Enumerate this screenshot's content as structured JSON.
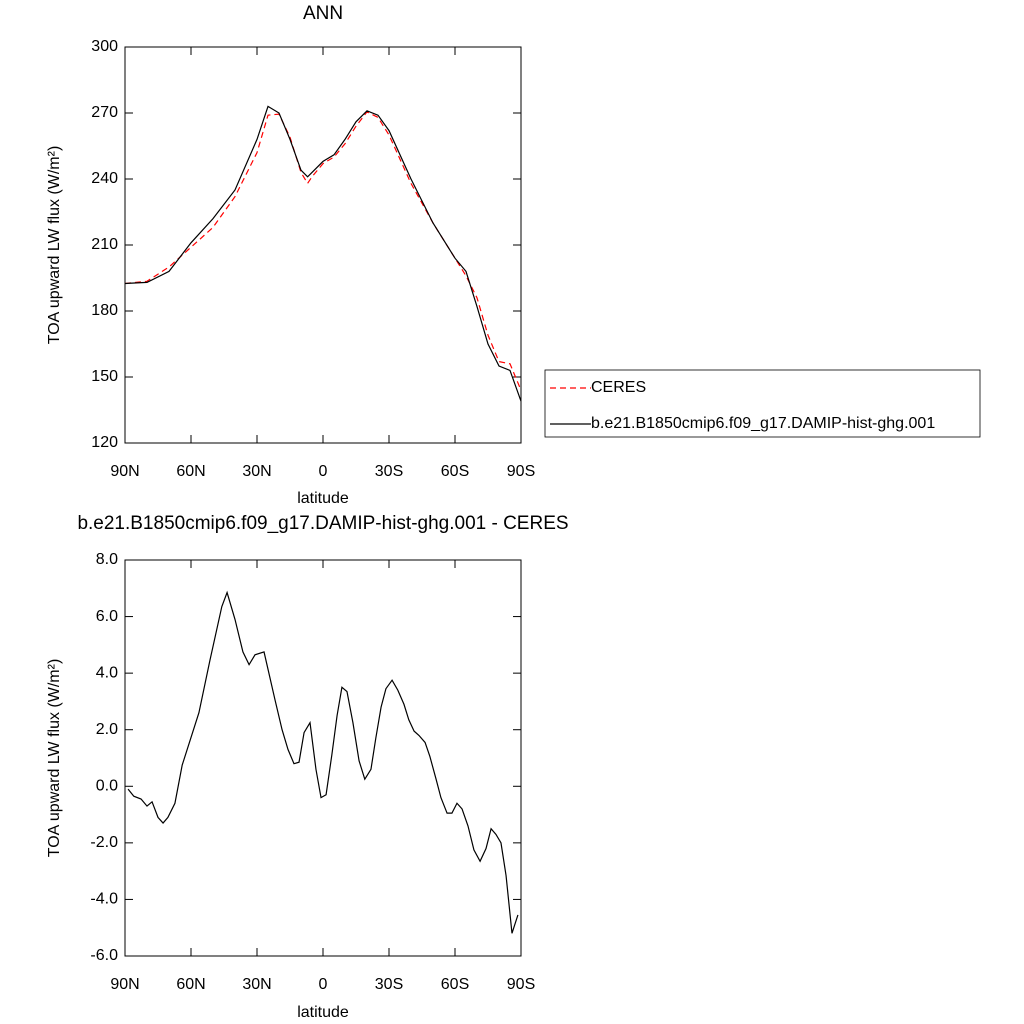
{
  "chart_data": [
    {
      "type": "line",
      "title": "ANN",
      "xlabel": "latitude",
      "ylabel": "TOA upward LW flux (W/m²)",
      "x": [
        90,
        80,
        70,
        60,
        50,
        40,
        30,
        25,
        20,
        15,
        10,
        7,
        5,
        0,
        -5,
        -10,
        -15,
        -20,
        -25,
        -30,
        -40,
        -50,
        -60,
        -65,
        -70,
        -75,
        -80,
        -85,
        -90
      ],
      "series": [
        {
          "name": "CERES",
          "color": "#ff0000",
          "dash": "dashed",
          "values": [
            192.5,
            193.5,
            200,
            209,
            218,
            232,
            252,
            269,
            269.5,
            259,
            243,
            238,
            241,
            247,
            250,
            256,
            264,
            270.5,
            268,
            260,
            238,
            220,
            204,
            196,
            186,
            169,
            157,
            156,
            144
          ]
        },
        {
          "name": "b.e21.B1850cmip6.f09_g17.DAMIP-hist-ghg.001",
          "color": "#000000",
          "dash": "solid",
          "values": [
            192.5,
            193,
            198,
            211,
            222,
            235,
            258,
            273,
            270,
            258,
            244,
            241,
            243,
            248,
            251,
            258,
            266,
            271,
            269,
            262,
            240,
            220,
            204,
            198,
            182,
            165,
            155,
            153,
            139
          ]
        }
      ],
      "xlim": [
        90,
        -90
      ],
      "xticks": [
        {
          "value": 90,
          "label": "90N"
        },
        {
          "value": 60,
          "label": "60N"
        },
        {
          "value": 30,
          "label": "30N"
        },
        0,
        {
          "value": -30,
          "label": "30S"
        },
        {
          "value": -60,
          "label": "60S"
        },
        {
          "value": -90,
          "label": "90S"
        }
      ],
      "ylim": [
        120,
        300
      ],
      "yticks": [
        120,
        150,
        180,
        210,
        240,
        270,
        300
      ],
      "legend": "right"
    },
    {
      "type": "line",
      "title": "b.e21.B1850cmip6.f09_g17.DAMIP-hist-ghg.001 - CERES",
      "xlabel": "latitude",
      "ylabel": "TOA upward LW flux (W/m²)",
      "x": [
        88.6,
        86,
        82.7,
        80,
        77.7,
        75,
        72.7,
        70.5,
        67.3,
        64,
        56.4,
        51.4,
        46,
        43.6,
        40,
        36.4,
        33.6,
        30.9,
        26.8,
        21.8,
        18.6,
        15.9,
        13.2,
        10.9,
        8.6,
        5.9,
        3.2,
        0.9,
        -1.4,
        -4,
        -6.4,
        -8.6,
        -10.9,
        -13.6,
        -16.4,
        -19,
        -21.8,
        -24,
        -26.4,
        -28.6,
        -31.4,
        -34,
        -36.8,
        -39,
        -41.4,
        -43.6,
        -46.4,
        -48.6,
        -51.4,
        -53.6,
        -56.4,
        -58.6,
        -60.9,
        -63.2,
        -65.9,
        -68.6,
        -71.4,
        -74.1,
        -76.4,
        -78.6,
        -80.9,
        -83.2,
        -85.9,
        -88.6
      ],
      "values": [
        -0.1,
        -0.35,
        -0.45,
        -0.7,
        -0.55,
        -1.1,
        -1.3,
        -1.1,
        -0.6,
        0.75,
        2.6,
        4.45,
        6.35,
        6.85,
        5.9,
        4.75,
        4.3,
        4.65,
        4.75,
        3.05,
        2.0,
        1.3,
        0.8,
        0.85,
        1.9,
        2.25,
        0.6,
        -0.4,
        -0.3,
        1.1,
        2.5,
        3.5,
        3.35,
        2.25,
        0.9,
        0.25,
        0.6,
        1.7,
        2.8,
        3.45,
        3.75,
        3.4,
        2.9,
        2.35,
        1.95,
        1.8,
        1.55,
        1.05,
        0.25,
        -0.4,
        -0.95,
        -0.95,
        -0.6,
        -0.8,
        -1.4,
        -2.25,
        -2.65,
        -2.2,
        -1.5,
        -1.7,
        -2.0,
        -3.15,
        -5.2,
        -4.55
      ],
      "color": "#000000",
      "xlim": [
        90,
        -90
      ],
      "xticks": [
        {
          "value": 90,
          "label": "90N"
        },
        {
          "value": 60,
          "label": "60N"
        },
        {
          "value": 30,
          "label": "30N"
        },
        0,
        {
          "value": -30,
          "label": "30S"
        },
        {
          "value": -60,
          "label": "60S"
        },
        {
          "value": -90,
          "label": "90S"
        }
      ],
      "ylim": [
        -6,
        8
      ],
      "yticks": [
        {
          "value": -6,
          "label": "-6.0"
        },
        {
          "value": -4,
          "label": "-4.0"
        },
        {
          "value": -2,
          "label": "-2.0"
        },
        {
          "value": 0,
          "label": "0.0"
        },
        {
          "value": 2,
          "label": "2.0"
        },
        {
          "value": 4,
          "label": "4.0"
        },
        {
          "value": 6,
          "label": "6.0"
        },
        {
          "value": 8,
          "label": "8.0"
        }
      ]
    }
  ]
}
